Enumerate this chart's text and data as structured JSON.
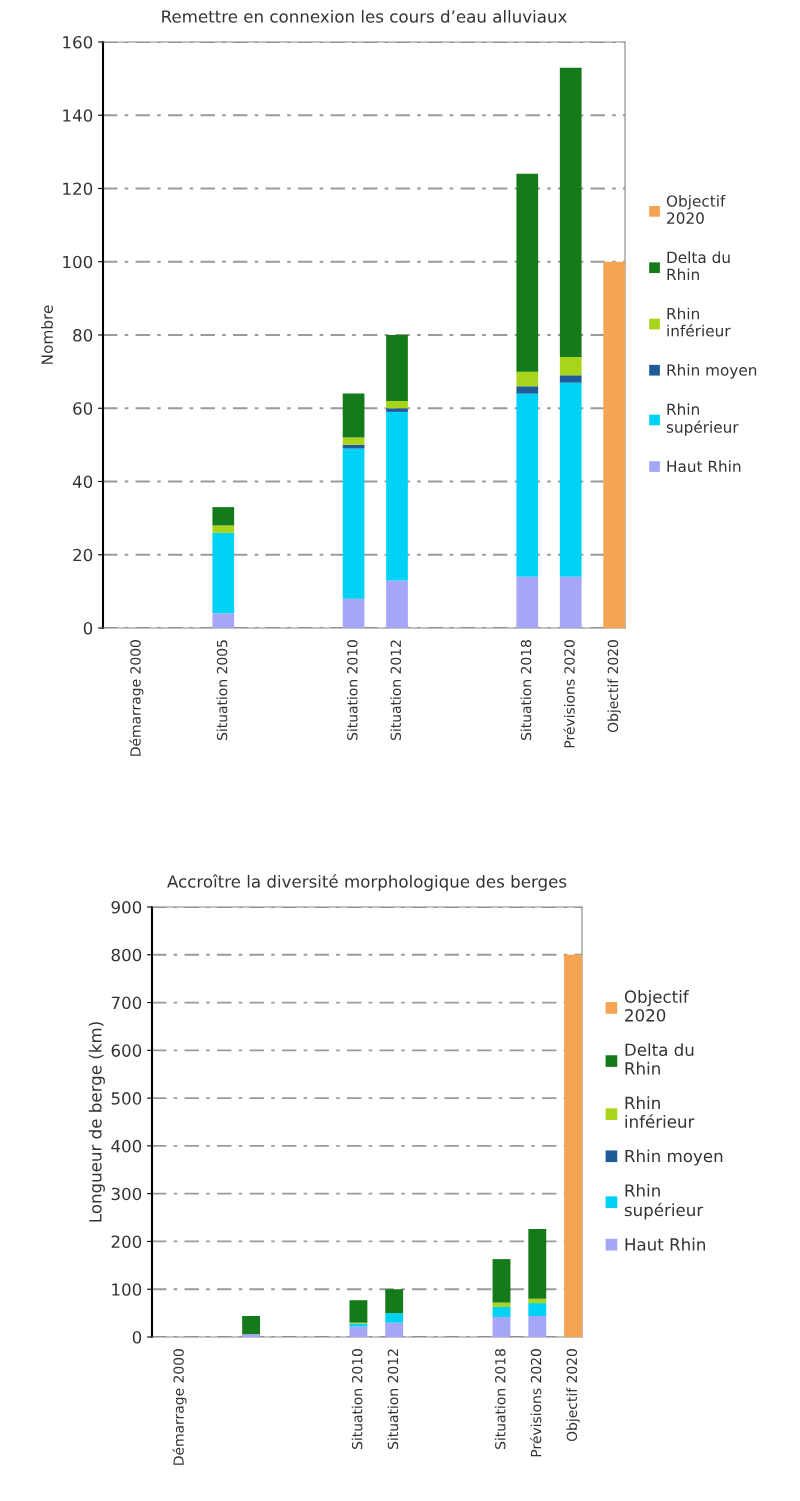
{
  "chart_data": [
    {
      "type": "bar",
      "stacked": true,
      "title": "Remettre en connexion les cours d’eau alluviaux",
      "ylabel": "Nombre",
      "categories": [
        "Démarrage 2000",
        null,
        "Situation 2005",
        null,
        null,
        "Situation 2010",
        "Situation 2012",
        null,
        null,
        "Situation 2018",
        "Prévisions 2020",
        "Objectif 2020"
      ],
      "series": [
        {
          "name": "Haut Rhin",
          "color": "#a6a6f7",
          "values": [
            null,
            null,
            4,
            null,
            null,
            8,
            13,
            null,
            null,
            14,
            14,
            null
          ]
        },
        {
          "name": "Rhin supérieur",
          "color": "#00d2f5",
          "values": [
            null,
            null,
            22,
            null,
            null,
            41,
            46,
            null,
            null,
            50,
            53,
            null
          ]
        },
        {
          "name": "Rhin moyen",
          "color": "#1f5b99",
          "values": [
            null,
            null,
            0,
            null,
            null,
            1,
            1,
            null,
            null,
            2,
            2,
            null
          ]
        },
        {
          "name": "Rhin inférieur",
          "color": "#a8d41a",
          "values": [
            null,
            null,
            2,
            null,
            null,
            2,
            2,
            null,
            null,
            4,
            5,
            null
          ]
        },
        {
          "name": "Delta du Rhin",
          "color": "#157a1a",
          "values": [
            null,
            null,
            5,
            null,
            null,
            12,
            18,
            null,
            null,
            54,
            79,
            null
          ]
        },
        {
          "name": "Objectif 2020",
          "color": "#f4a453",
          "values": [
            null,
            null,
            null,
            null,
            null,
            null,
            null,
            null,
            null,
            null,
            null,
            100
          ]
        }
      ],
      "ylim": [
        0,
        160
      ],
      "yticks": [
        0,
        20,
        40,
        60,
        80,
        100,
        120,
        140,
        160
      ],
      "grid": "y",
      "legend": "right"
    },
    {
      "type": "bar",
      "stacked": true,
      "title": "Accroître la diversité morphologique des berges",
      "ylabel": "Longueur de berge (km)",
      "categories": [
        "Démarrage 2000",
        null,
        null,
        null,
        null,
        "Situation 2010",
        "Situation 2012",
        null,
        null,
        "Situation 2018",
        "Prévisions 2020",
        "Objectif 2020"
      ],
      "series": [
        {
          "name": "Haut Rhin",
          "color": "#a6a6f7",
          "values": [
            null,
            null,
            6,
            null,
            null,
            22,
            30,
            null,
            null,
            42,
            44,
            null
          ]
        },
        {
          "name": "Rhin supérieur",
          "color": "#00d2f5",
          "values": [
            null,
            null,
            0,
            null,
            null,
            6,
            20,
            null,
            null,
            21,
            27,
            null
          ]
        },
        {
          "name": "Rhin moyen",
          "color": "#1f5b99",
          "values": [
            null,
            null,
            0,
            null,
            null,
            0,
            0,
            null,
            null,
            0,
            0,
            null
          ]
        },
        {
          "name": "Rhin inférieur",
          "color": "#a8d41a",
          "values": [
            null,
            null,
            0,
            null,
            null,
            2,
            0,
            null,
            null,
            9,
            9,
            null
          ]
        },
        {
          "name": "Delta du Rhin",
          "color": "#157a1a",
          "values": [
            null,
            null,
            38,
            null,
            null,
            47,
            50,
            null,
            null,
            91,
            146,
            null
          ]
        },
        {
          "name": "Objectif 2020",
          "color": "#f4a453",
          "values": [
            null,
            null,
            null,
            null,
            null,
            null,
            null,
            null,
            null,
            null,
            null,
            800
          ]
        }
      ],
      "ylim": [
        0,
        900
      ],
      "yticks": [
        0,
        100,
        200,
        300,
        400,
        500,
        600,
        700,
        800,
        900
      ],
      "grid": "y",
      "legend": "right"
    }
  ]
}
